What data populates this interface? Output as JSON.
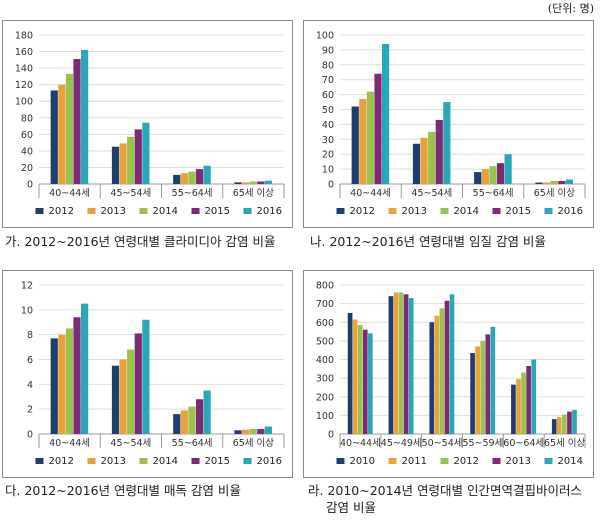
{
  "unit_label": "(단위: 명)",
  "colors": [
    "#1f3d6e",
    "#e8a23c",
    "#9bc14e",
    "#7b2a73",
    "#2aa6b5"
  ],
  "chart_data": [
    {
      "type": "bar",
      "caption": "가. 2012~2016년 연령대별 클라미디아 감염 비율",
      "caption_lines": [
        "가. 2012~2016년 연령대별 클라미디아 감염 비율"
      ],
      "categories": [
        "40~44세",
        "45~54세",
        "55~64세",
        "65세 이상"
      ],
      "ylim": [
        0,
        180
      ],
      "yticks": [
        0,
        20,
        40,
        60,
        80,
        100,
        120,
        140,
        160,
        180
      ],
      "series": [
        {
          "name": "2012",
          "values": [
            113,
            45,
            11,
            2
          ]
        },
        {
          "name": "2013",
          "values": [
            120,
            49,
            13,
            2
          ]
        },
        {
          "name": "2014",
          "values": [
            133,
            57,
            15,
            3
          ]
        },
        {
          "name": "2015",
          "values": [
            151,
            66,
            18,
            3
          ]
        },
        {
          "name": "2016",
          "values": [
            162,
            74,
            22,
            4
          ]
        }
      ]
    },
    {
      "type": "bar",
      "caption": "나. 2012~2016년 연령대별 임질 감염 비율",
      "caption_lines": [
        "나. 2012~2016년 연령대별 임질 감염 비율"
      ],
      "categories": [
        "40~44세",
        "45~54세",
        "55~64세",
        "65세 이상"
      ],
      "ylim": [
        0,
        100
      ],
      "yticks": [
        0,
        10,
        20,
        30,
        40,
        50,
        60,
        70,
        80,
        90,
        100
      ],
      "series": [
        {
          "name": "2012",
          "values": [
            52,
            27,
            8,
            1
          ]
        },
        {
          "name": "2013",
          "values": [
            57,
            31,
            10,
            1
          ]
        },
        {
          "name": "2014",
          "values": [
            62,
            35,
            12,
            2
          ]
        },
        {
          "name": "2015",
          "values": [
            74,
            43,
            14,
            2
          ]
        },
        {
          "name": "2016",
          "values": [
            94,
            55,
            20,
            3
          ]
        }
      ]
    },
    {
      "type": "bar",
      "caption": "다. 2012~2016년 연령대별 매독 감염 비율",
      "caption_lines": [
        "다. 2012~2016년 연령대별 매독 감염 비율"
      ],
      "categories": [
        "40~44세",
        "45~54세",
        "55~64세",
        "65세 이상"
      ],
      "ylim": [
        0,
        12
      ],
      "yticks": [
        0,
        2,
        4,
        6,
        8,
        10,
        12
      ],
      "series": [
        {
          "name": "2012",
          "values": [
            7.7,
            5.5,
            1.6,
            0.3
          ]
        },
        {
          "name": "2013",
          "values": [
            8.0,
            6.0,
            1.9,
            0.35
          ]
        },
        {
          "name": "2014",
          "values": [
            8.5,
            6.8,
            2.2,
            0.4
          ]
        },
        {
          "name": "2015",
          "values": [
            9.4,
            8.1,
            2.8,
            0.4
          ]
        },
        {
          "name": "2016",
          "values": [
            10.5,
            9.2,
            3.5,
            0.6
          ]
        }
      ]
    },
    {
      "type": "bar",
      "caption": "라. 2010~2014년 연령대별 인간면역결핍바이러스 감염 비율",
      "caption_lines": [
        "라. 2010~2014년 연령대별 인간면역결핍바이러스",
        "감염 비율"
      ],
      "categories": [
        "40~44세",
        "45~49세",
        "50~54세",
        "55~59세",
        "60~64세",
        "65세 이상"
      ],
      "ylim": [
        0,
        800
      ],
      "yticks": [
        0,
        100,
        200,
        300,
        400,
        500,
        600,
        700,
        800
      ],
      "series": [
        {
          "name": "2010",
          "values": [
            650,
            740,
            600,
            435,
            265,
            80
          ]
        },
        {
          "name": "2011",
          "values": [
            615,
            760,
            635,
            470,
            295,
            90
          ]
        },
        {
          "name": "2012",
          "values": [
            585,
            760,
            675,
            500,
            330,
            105
          ]
        },
        {
          "name": "2013",
          "values": [
            560,
            750,
            715,
            535,
            365,
            120
          ]
        },
        {
          "name": "2014",
          "values": [
            540,
            730,
            750,
            575,
            400,
            130
          ]
        }
      ]
    }
  ]
}
